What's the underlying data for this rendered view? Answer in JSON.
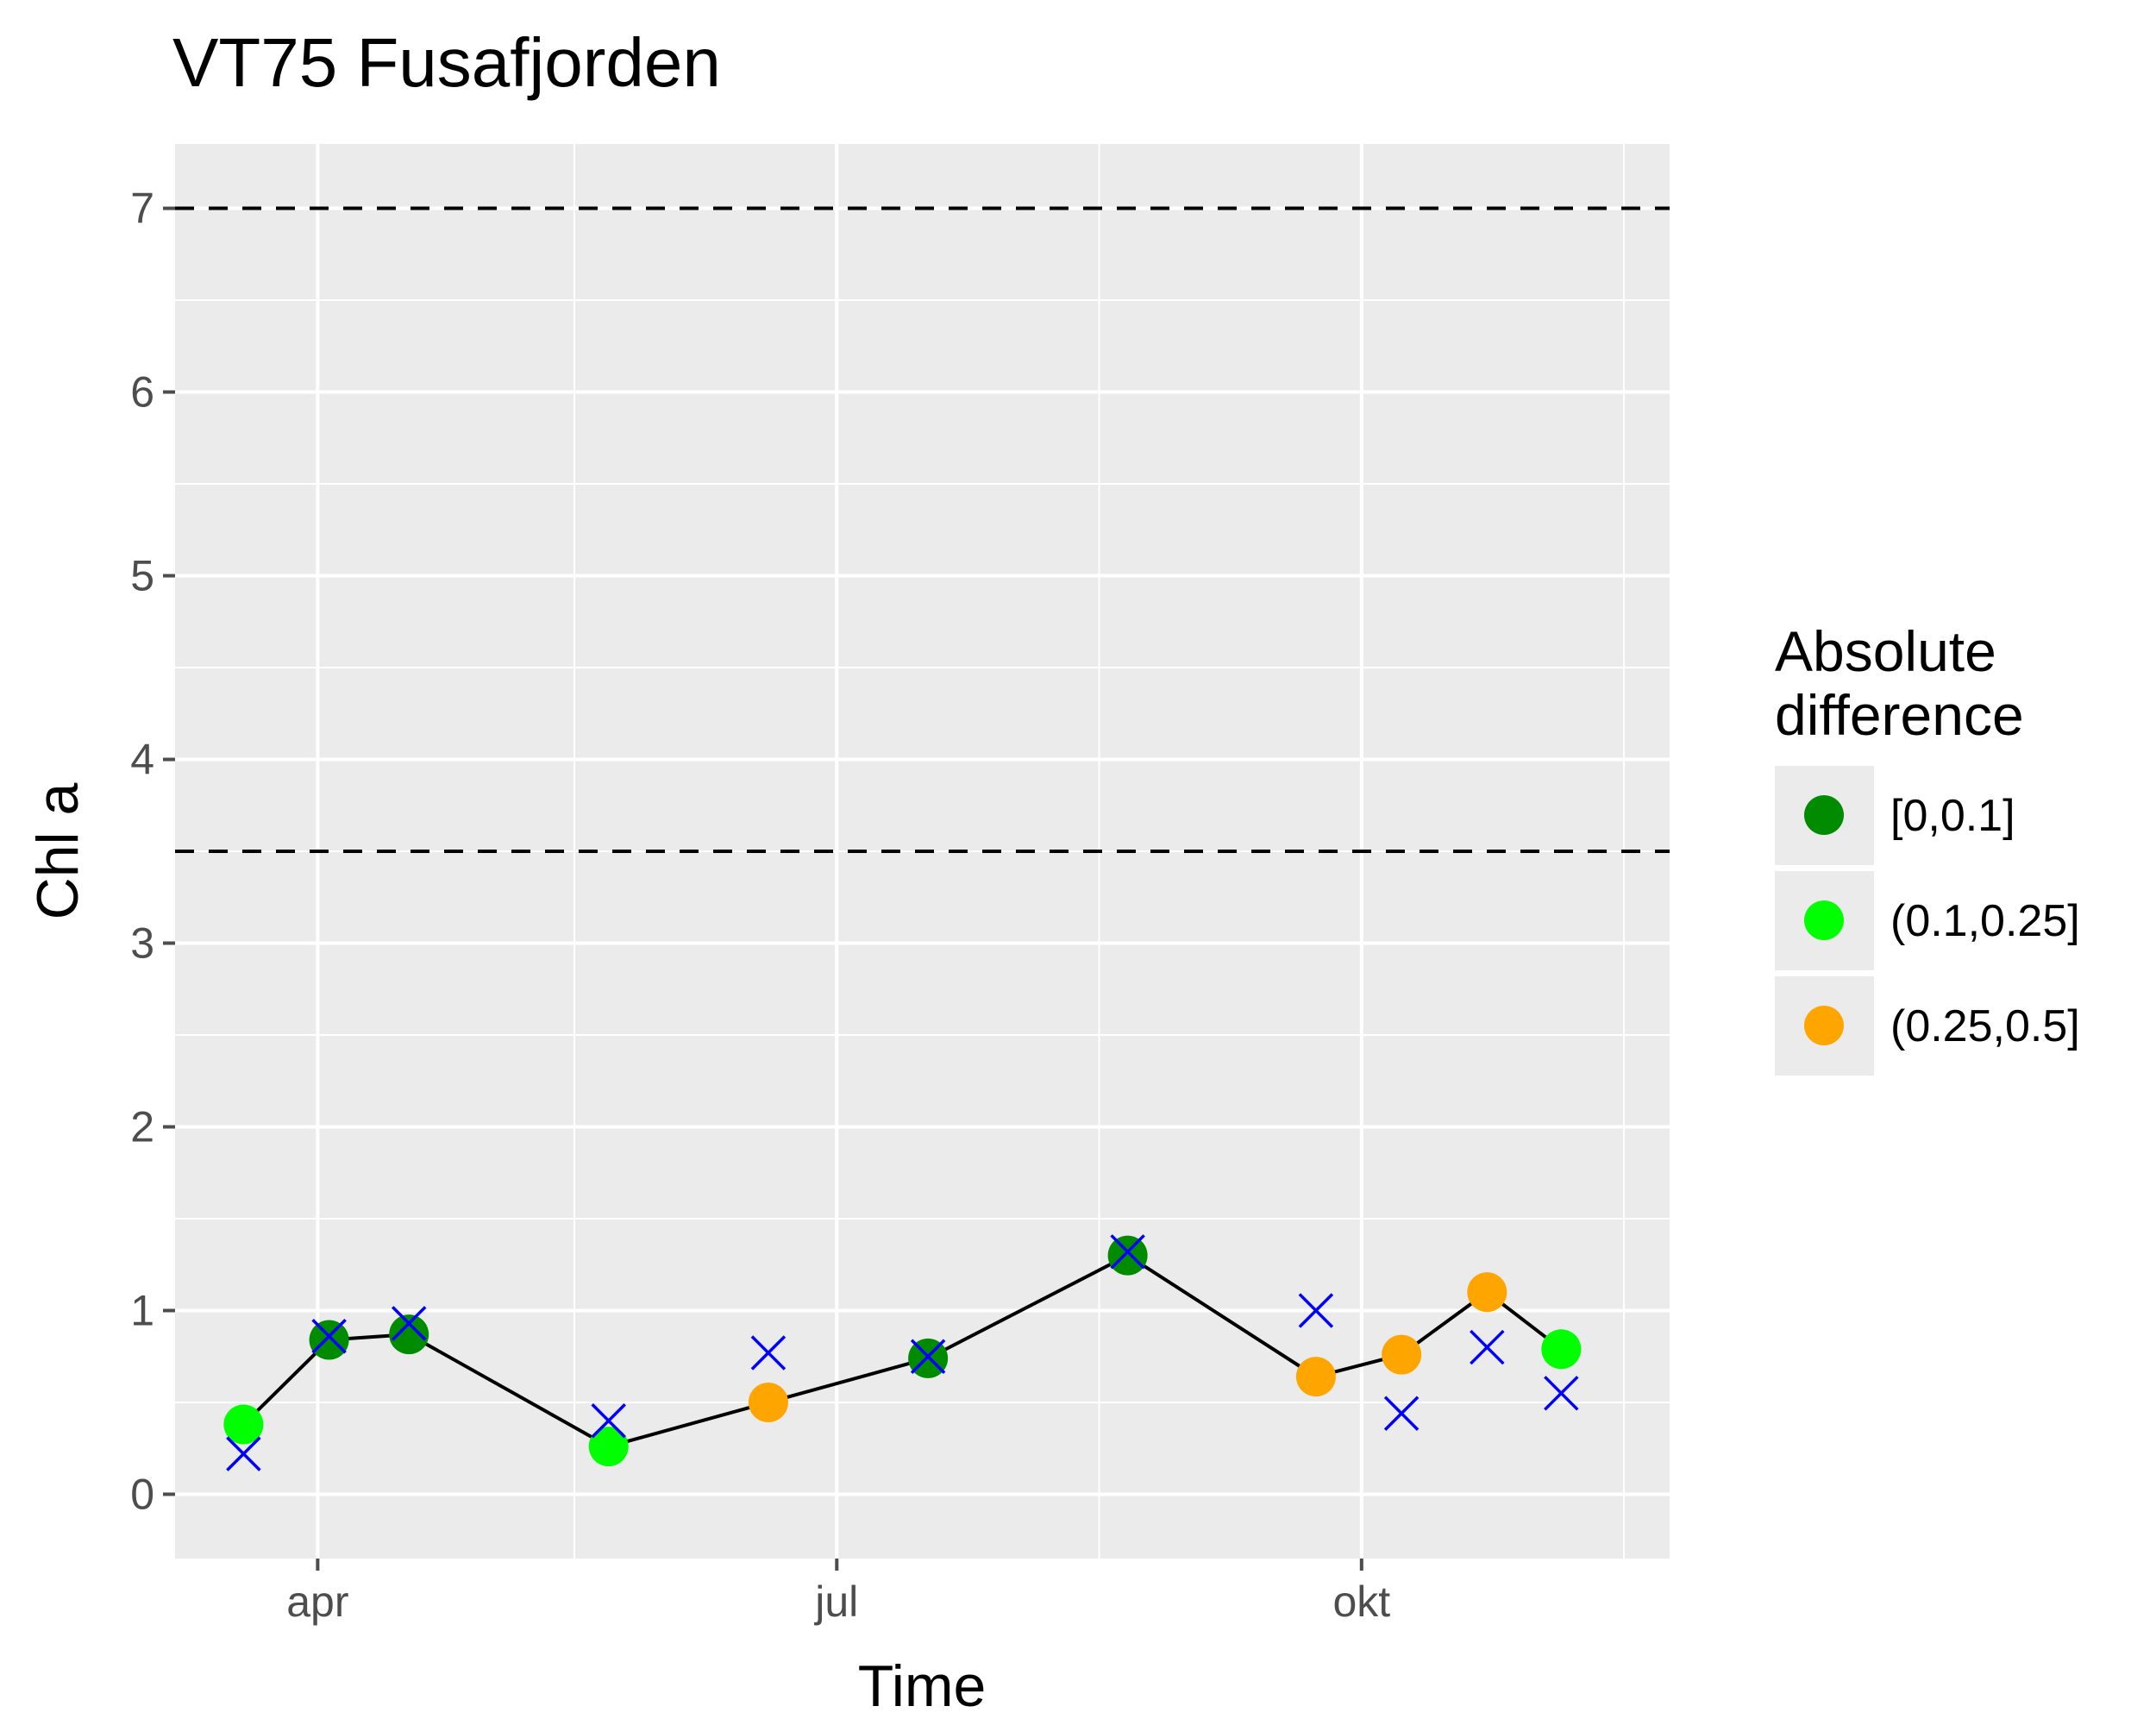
{
  "chart_data": {
    "type": "line",
    "title": "VT75 Fusafjorden",
    "xlabel": "Time",
    "ylabel": "Chl a",
    "x_type": "date",
    "xlim": [
      "2021-03-07",
      "2021-11-24"
    ],
    "ylim": [
      -0.35,
      7.35
    ],
    "x_ticks": [
      {
        "date": "2021-04-01",
        "label": "apr"
      },
      {
        "date": "2021-07-01",
        "label": "jul"
      },
      {
        "date": "2021-10-01",
        "label": "okt"
      }
    ],
    "x_minor_ticks": [
      "2021-05-16",
      "2021-08-16",
      "2021-11-16"
    ],
    "y_ticks": [
      0,
      1,
      2,
      3,
      4,
      5,
      6,
      7
    ],
    "grid": true,
    "reference_lines": [
      {
        "y": 3.5,
        "style": "dashed"
      },
      {
        "y": 7,
        "style": "dashed"
      }
    ],
    "series": [
      {
        "kind": "line+points",
        "points": [
          {
            "x": "2021-03-19",
            "y": 0.38,
            "category": "(0.1,0.25]"
          },
          {
            "x": "2021-04-03",
            "y": 0.84,
            "category": "[0,0.1]"
          },
          {
            "x": "2021-04-17",
            "y": 0.87,
            "category": "[0,0.1]"
          },
          {
            "x": "2021-05-22",
            "y": 0.26,
            "category": "(0.1,0.25]"
          },
          {
            "x": "2021-06-19",
            "y": 0.5,
            "category": "(0.25,0.5]"
          },
          {
            "x": "2021-07-17",
            "y": 0.74,
            "category": "[0,0.1]"
          },
          {
            "x": "2021-08-21",
            "y": 1.3,
            "category": "[0,0.1]"
          },
          {
            "x": "2021-09-23",
            "y": 0.64,
            "category": "(0.25,0.5]"
          },
          {
            "x": "2021-10-08",
            "y": 0.76,
            "category": "(0.25,0.5]"
          },
          {
            "x": "2021-10-23",
            "y": 1.1,
            "category": "(0.25,0.5]"
          },
          {
            "x": "2021-11-05",
            "y": 0.79,
            "category": "(0.1,0.25]"
          }
        ]
      },
      {
        "kind": "cross-markers",
        "points": [
          {
            "x": "2021-03-19",
            "y": 0.22
          },
          {
            "x": "2021-04-03",
            "y": 0.86
          },
          {
            "x": "2021-04-17",
            "y": 0.93
          },
          {
            "x": "2021-05-22",
            "y": 0.4
          },
          {
            "x": "2021-06-19",
            "y": 0.77
          },
          {
            "x": "2021-07-17",
            "y": 0.75
          },
          {
            "x": "2021-08-21",
            "y": 1.32
          },
          {
            "x": "2021-09-23",
            "y": 1.0
          },
          {
            "x": "2021-10-08",
            "y": 0.44
          },
          {
            "x": "2021-10-23",
            "y": 0.8
          },
          {
            "x": "2021-11-05",
            "y": 0.55
          }
        ]
      }
    ],
    "legend": {
      "title": [
        "Absolute",
        "difference"
      ],
      "position": "right",
      "entries": [
        {
          "label": "[0,0.1]",
          "color": "#008B00"
        },
        {
          "label": "(0.1,0.25]",
          "color": "#00FF00"
        },
        {
          "label": "(0.25,0.5]",
          "color": "#FFA500"
        }
      ]
    },
    "colors": {
      "panel_background": "#EBEBEB",
      "grid": "#FFFFFF",
      "line": "#000000",
      "cross": "#0000FF",
      "reference": "#000000",
      "tick": "#4D4D4D"
    }
  }
}
